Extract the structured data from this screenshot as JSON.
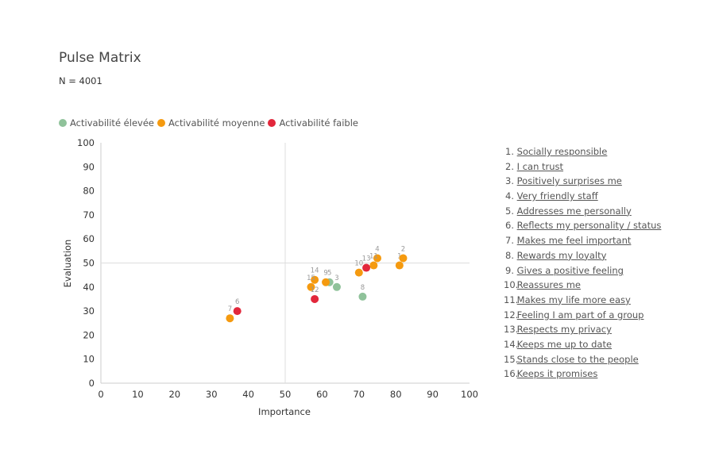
{
  "title": "Pulse Matrix",
  "subtitle": "N = 4001",
  "legend": [
    {
      "label": "Activabilité élevée",
      "color": "#8fc29a"
    },
    {
      "label": "Activabilité moyenne",
      "color": "#f59a0f"
    },
    {
      "label": "Activabilité faible",
      "color": "#e2273b"
    }
  ],
  "items": [
    {
      "num": "1.",
      "label": "Socially responsible"
    },
    {
      "num": "2.",
      "label": "I can trust"
    },
    {
      "num": "3.",
      "label": "Positively surprises me"
    },
    {
      "num": "4.",
      "label": "Very friendly staff"
    },
    {
      "num": "5.",
      "label": "Addresses me personally"
    },
    {
      "num": "6.",
      "label": "Reflects my personality / status"
    },
    {
      "num": "7.",
      "label": "Makes me feel important"
    },
    {
      "num": "8.",
      "label": "Rewards my loyalty"
    },
    {
      "num": "9.",
      "label": "Gives a positive feeling"
    },
    {
      "num": "10.",
      "label": "Reassures me"
    },
    {
      "num": "11.",
      "label": "Makes my life more easy"
    },
    {
      "num": "12.",
      "label": "Feeling I am part of a group"
    },
    {
      "num": "13.",
      "label": "Respects my privacy"
    },
    {
      "num": "14.",
      "label": "Keeps me up to date"
    },
    {
      "num": "15.",
      "label": "Stands close to the people"
    },
    {
      "num": "16.",
      "label": "Keeps it promises"
    }
  ],
  "chart_data": {
    "type": "scatter",
    "title": "Pulse Matrix",
    "subtitle": "N = 4001",
    "xlabel": "Importance",
    "ylabel": "Evaluation",
    "xlim": [
      0,
      100
    ],
    "ylim": [
      0,
      100
    ],
    "xticks": [
      0,
      10,
      20,
      30,
      40,
      50,
      60,
      70,
      80,
      90,
      100
    ],
    "yticks": [
      0,
      10,
      20,
      30,
      40,
      50,
      60,
      70,
      80,
      90,
      100
    ],
    "reference_lines": {
      "x": 50,
      "y": 50
    },
    "grid": false,
    "legend_position": "top-left",
    "series": [
      {
        "name": "Activabilité élevée",
        "color": "#8fc29a",
        "points": [
          {
            "id": "3",
            "x": 64,
            "y": 40
          },
          {
            "id": "5",
            "x": 62,
            "y": 42
          },
          {
            "id": "8",
            "x": 71,
            "y": 36
          }
        ]
      },
      {
        "name": "Activabilité moyenne",
        "color": "#f59a0f",
        "points": [
          {
            "id": "1",
            "x": 81,
            "y": 49
          },
          {
            "id": "2",
            "x": 82,
            "y": 52
          },
          {
            "id": "4",
            "x": 75,
            "y": 52
          },
          {
            "id": "7",
            "x": 35,
            "y": 27
          },
          {
            "id": "9",
            "x": 61,
            "y": 42
          },
          {
            "id": "10",
            "x": 70,
            "y": 46
          },
          {
            "id": "11",
            "x": 74,
            "y": 49
          },
          {
            "id": "14",
            "x": 58,
            "y": 43
          },
          {
            "id": "15",
            "x": 57,
            "y": 40
          }
        ]
      },
      {
        "name": "Activabilité faible",
        "color": "#e2273b",
        "points": [
          {
            "id": "6",
            "x": 37,
            "y": 30
          },
          {
            "id": "12",
            "x": 58,
            "y": 35
          },
          {
            "id": "13",
            "x": 72,
            "y": 48
          }
        ]
      }
    ]
  }
}
